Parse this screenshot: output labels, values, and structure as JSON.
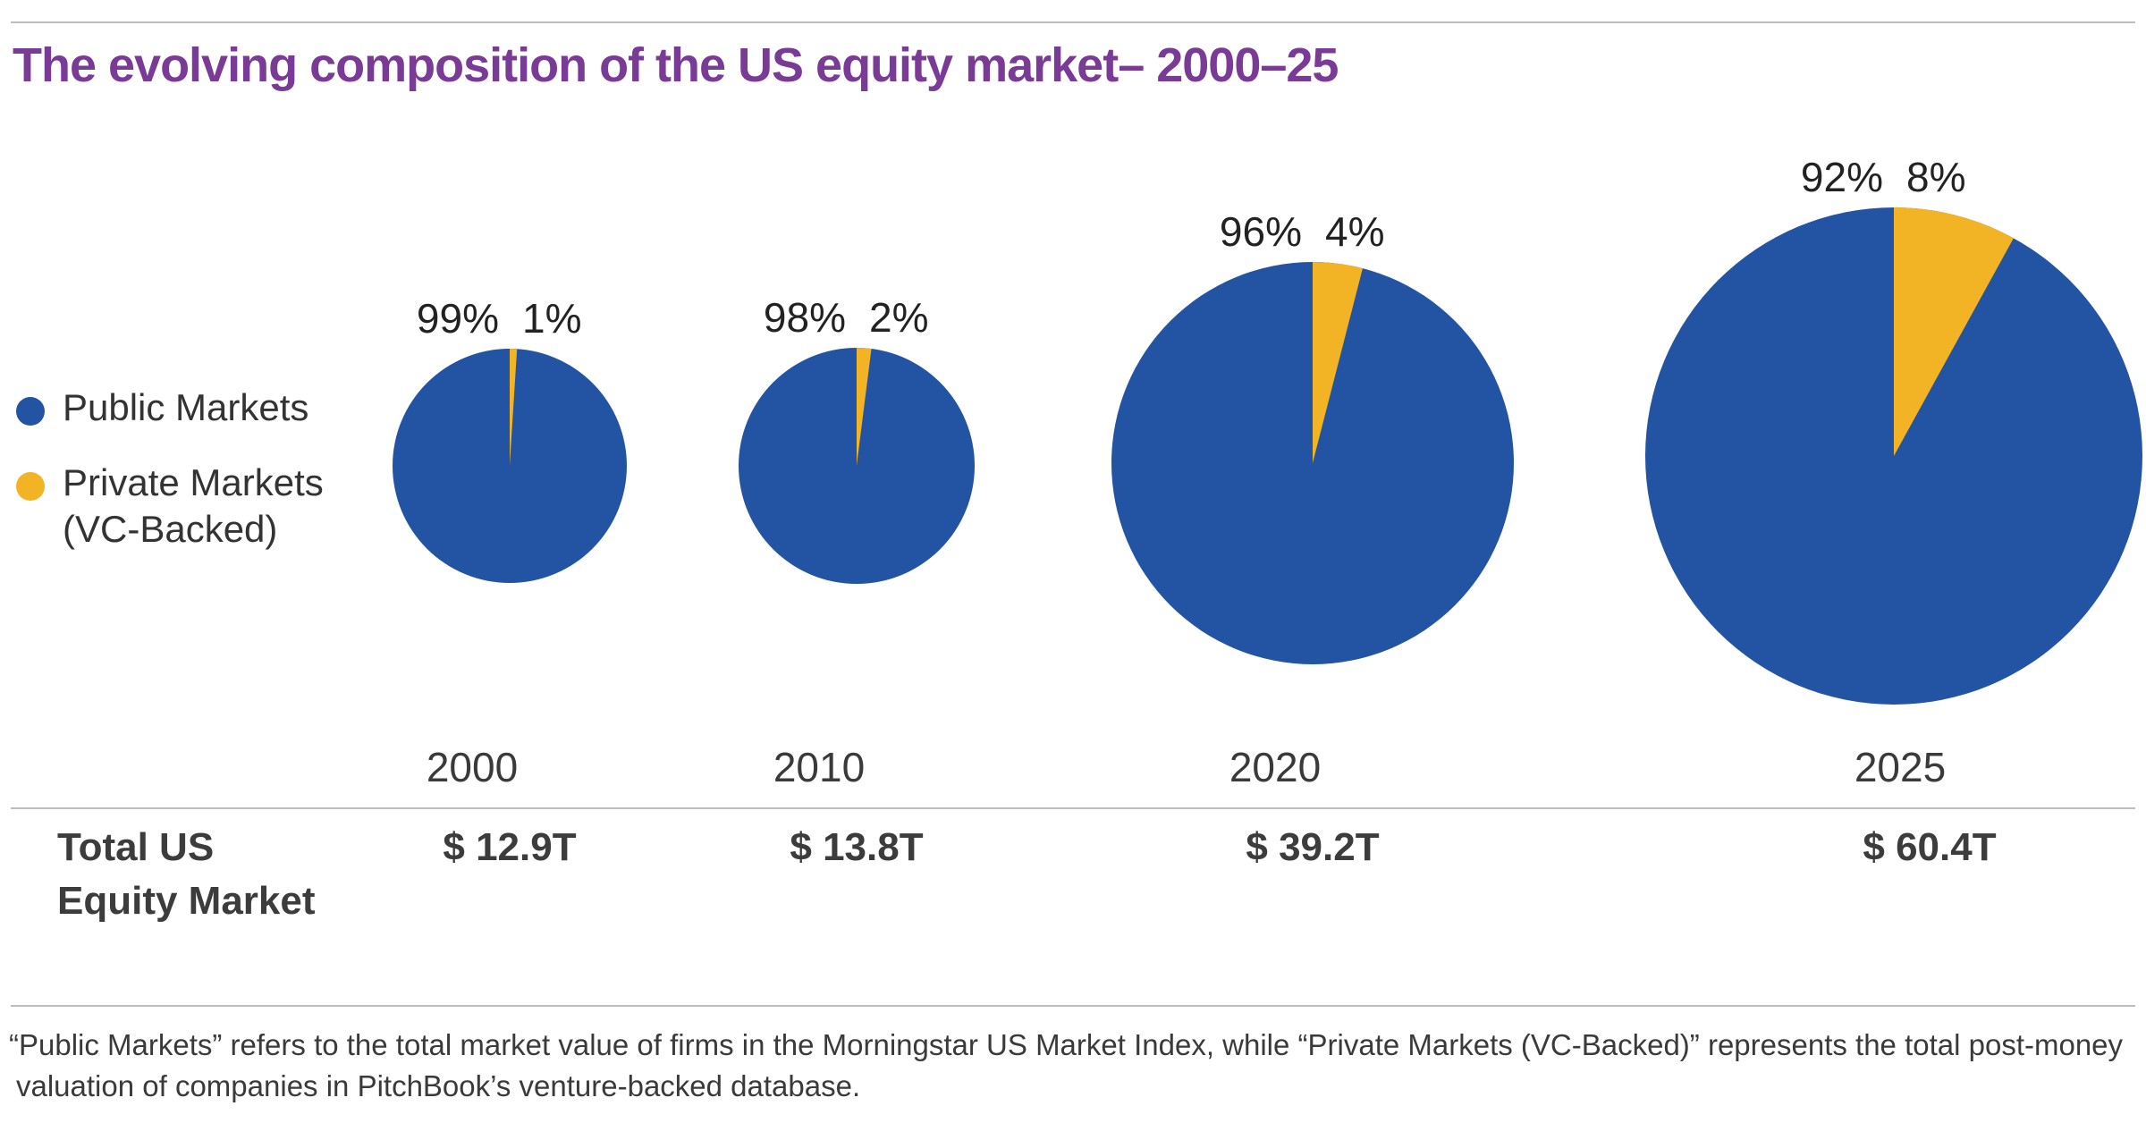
{
  "title": "The evolving composition of the US equity market– 2000–25",
  "colors": {
    "public": "#2254a3",
    "private": "#f2b325",
    "title": "#7a3b96"
  },
  "legend": [
    {
      "key": "public",
      "label": "Public Markets"
    },
    {
      "key": "private",
      "label": "Private Markets (VC-Backed)"
    }
  ],
  "chart_data": {
    "type": "pie",
    "title": "The evolving composition of the US equity market– 2000–25",
    "series_names": [
      "Public Markets",
      "Private Markets (VC-Backed)"
    ],
    "pies": [
      {
        "year": "2000",
        "total": "$ 12.9T",
        "total_value": 12.9,
        "public": 99,
        "private": 1,
        "public_label": "99%",
        "private_label": "1%"
      },
      {
        "year": "2010",
        "total": "$ 13.8T",
        "total_value": 13.8,
        "public": 98,
        "private": 2,
        "public_label": "98%",
        "private_label": "2%"
      },
      {
        "year": "2020",
        "total": "$ 39.2T",
        "total_value": 39.2,
        "public": 96,
        "private": 4,
        "public_label": "96%",
        "private_label": "4%"
      },
      {
        "year": "2025",
        "total": "$ 60.4T",
        "total_value": 60.4,
        "public": 92,
        "private": 8,
        "public_label": "92%",
        "private_label": "8%"
      }
    ],
    "totals_row_label": "Total US Equity Market"
  },
  "footnote": [
    "“Public Markets” refers to the total market value of firms in the Morningstar US Market Index, while “Private Markets (VC-Backed)” represents the total post-money",
    "valuation of companies in PitchBook’s venture-backed database."
  ]
}
